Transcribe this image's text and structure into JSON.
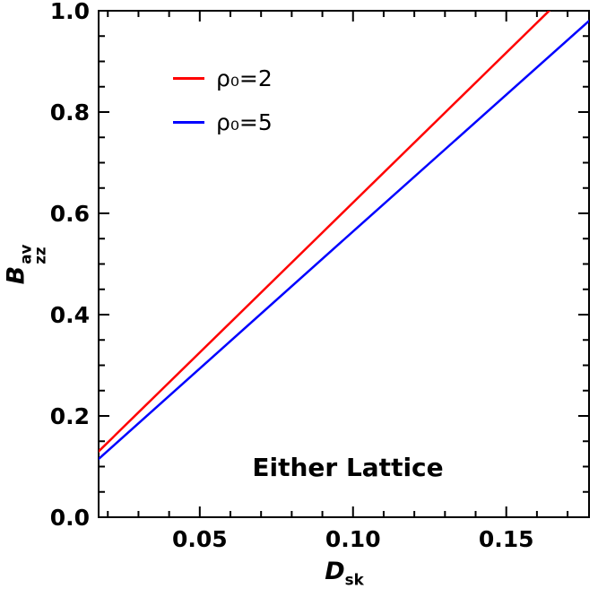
{
  "chart_data": {
    "type": "line",
    "title": "",
    "xlabel": {
      "base": "D",
      "sub": "sk"
    },
    "ylabel": {
      "base": "B",
      "sup": "av",
      "sub": "zz"
    },
    "xlim": [
      0.017,
      0.177
    ],
    "ylim": [
      0.0,
      1.0
    ],
    "x_ticks": [
      {
        "v": 0.05,
        "label": "0.05"
      },
      {
        "v": 0.1,
        "label": "0.10"
      },
      {
        "v": 0.15,
        "label": "0.15"
      }
    ],
    "y_ticks": [
      {
        "v": 0.0,
        "label": "0.0"
      },
      {
        "v": 0.2,
        "label": "0.2"
      },
      {
        "v": 0.4,
        "label": "0.4"
      },
      {
        "v": 0.6,
        "label": "0.6"
      },
      {
        "v": 0.8,
        "label": "0.8"
      },
      {
        "v": 1.0,
        "label": "1.0"
      }
    ],
    "x_minor_step": 0.01,
    "y_minor_step": 0.05,
    "grid": false,
    "frame_color": "#000000",
    "legend_position": "top-left",
    "series": [
      {
        "name": "ρ₀=2",
        "color": "#ff0000",
        "points": [
          [
            0.017,
            0.13
          ],
          [
            0.09,
            0.562
          ],
          [
            0.164,
            1.0
          ]
        ]
      },
      {
        "name": "ρ₀=5",
        "color": "#0000ff",
        "points": [
          [
            0.017,
            0.115
          ],
          [
            0.097,
            0.548
          ],
          [
            0.177,
            0.98
          ]
        ]
      }
    ],
    "annotation": "Either Lattice"
  }
}
